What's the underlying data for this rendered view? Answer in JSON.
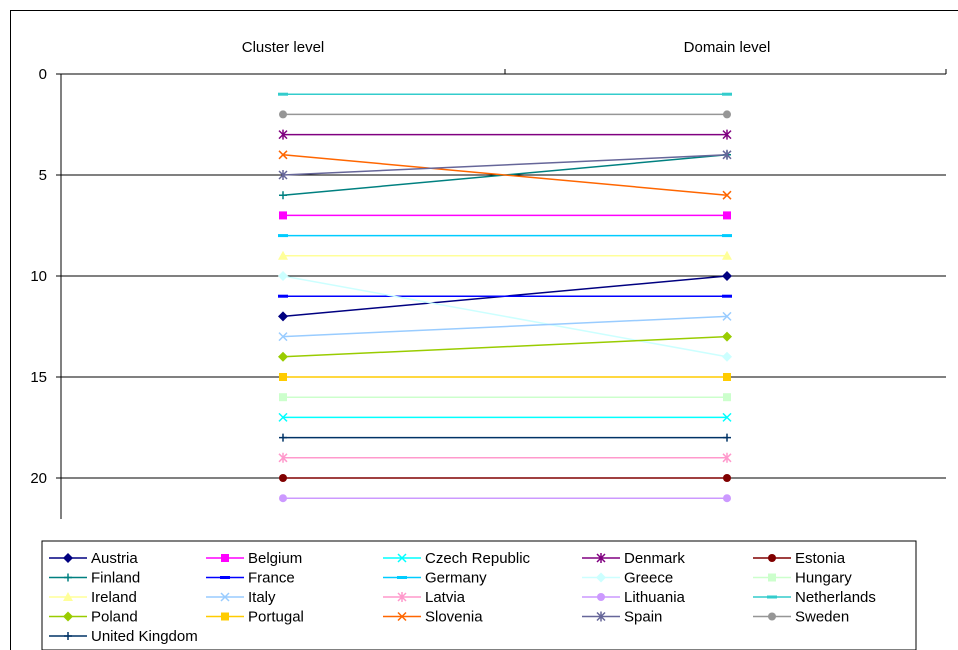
{
  "chart_data": {
    "type": "line",
    "categories": [
      "Cluster level",
      "Domain level"
    ],
    "y_axis": {
      "min": 0,
      "max": 22,
      "reversed": true,
      "ticks": [
        0,
        5,
        10,
        15,
        20
      ]
    },
    "grid": true,
    "legend_position": "bottom",
    "series": [
      {
        "name": "Austria",
        "values": [
          12,
          10
        ],
        "color": "#000080",
        "marker": "diamond"
      },
      {
        "name": "Belgium",
        "values": [
          7,
          7
        ],
        "color": "#FF00FF",
        "marker": "square"
      },
      {
        "name": "Czech Republic",
        "values": [
          17,
          17
        ],
        "color": "#00FFFF",
        "marker": "x"
      },
      {
        "name": "Denmark",
        "values": [
          3,
          3
        ],
        "color": "#800080",
        "marker": "star"
      },
      {
        "name": "Estonia",
        "values": [
          20,
          20
        ],
        "color": "#800000",
        "marker": "circle"
      },
      {
        "name": "Finland",
        "values": [
          6,
          4
        ],
        "color": "#008080",
        "marker": "plus"
      },
      {
        "name": "France",
        "values": [
          11,
          11
        ],
        "color": "#0000FF",
        "marker": "dash"
      },
      {
        "name": "Germany",
        "values": [
          8,
          8
        ],
        "color": "#00CCFF",
        "marker": "dash"
      },
      {
        "name": "Greece",
        "values": [
          10,
          14
        ],
        "color": "#CCFFFF",
        "marker": "diamond"
      },
      {
        "name": "Hungary",
        "values": [
          16,
          16
        ],
        "color": "#CCFFCC",
        "marker": "square"
      },
      {
        "name": "Ireland",
        "values": [
          9,
          9
        ],
        "color": "#FFFF99",
        "marker": "triangle"
      },
      {
        "name": "Italy",
        "values": [
          13,
          12
        ],
        "color": "#99CCFF",
        "marker": "x"
      },
      {
        "name": "Latvia",
        "values": [
          19,
          19
        ],
        "color": "#FF99CC",
        "marker": "star"
      },
      {
        "name": "Lithuania",
        "values": [
          21,
          21
        ],
        "color": "#CC99FF",
        "marker": "circle"
      },
      {
        "name": "Netherlands",
        "values": [
          1,
          1
        ],
        "color": "#33CCCC",
        "marker": "dash"
      },
      {
        "name": "Poland",
        "values": [
          14,
          13
        ],
        "color": "#99CC00",
        "marker": "diamond"
      },
      {
        "name": "Portugal",
        "values": [
          15,
          15
        ],
        "color": "#FFCC00",
        "marker": "square"
      },
      {
        "name": "Slovenia",
        "values": [
          4,
          6
        ],
        "color": "#FF6600",
        "marker": "x"
      },
      {
        "name": "Spain",
        "values": [
          5,
          4
        ],
        "color": "#666699",
        "marker": "star"
      },
      {
        "name": "Sweden",
        "values": [
          2,
          2
        ],
        "color": "#969696",
        "marker": "circle"
      },
      {
        "name": "United Kingdom",
        "values": [
          18,
          18
        ],
        "color": "#003366",
        "marker": "plus"
      }
    ]
  }
}
